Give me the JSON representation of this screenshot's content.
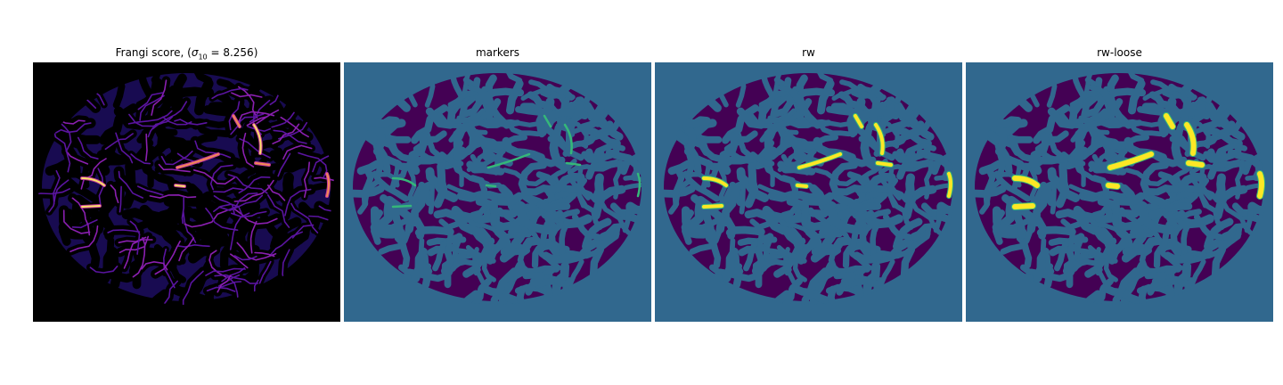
{
  "panels": [
    {
      "id": "frangi",
      "title_prefix": "Frangi score, (",
      "sigma_symbol": "σ",
      "sigma_sub": "10",
      "title_suffix": " = 8.256)",
      "colormap": "plasma"
    },
    {
      "id": "markers",
      "title": "markers",
      "colormap": "viridis"
    },
    {
      "id": "rw",
      "title": "rw",
      "colormap": "viridis"
    },
    {
      "id": "rw-loose",
      "title": "rw-loose",
      "colormap": "viridis"
    }
  ],
  "colors": {
    "black": "#000000",
    "plasma_dark": "#1b0c5a",
    "plasma_mid": "#5a14a0",
    "plasma_purple": "#8a1fb0",
    "plasma_magenta": "#c23a9a",
    "plasma_orange": "#f28a52",
    "plasma_yellow": "#fbe16a",
    "viridis_bg": "#31688e",
    "viridis_dark": "#440154",
    "viridis_green": "#35b779",
    "viridis_yellow": "#fde725"
  }
}
